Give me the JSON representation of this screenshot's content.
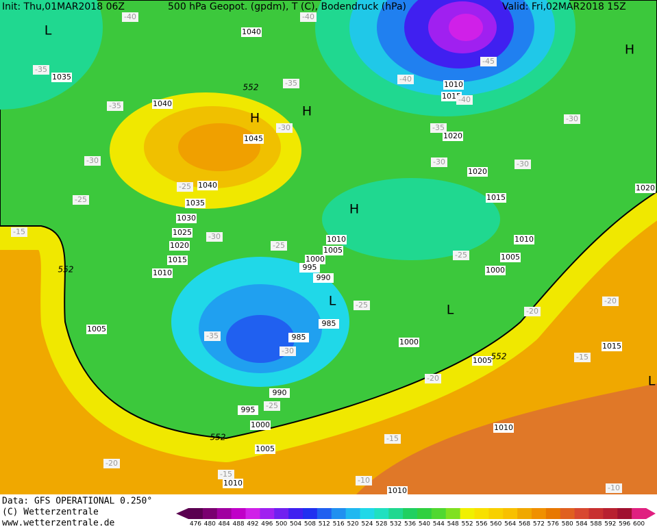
{
  "header": {
    "init": "Init: Thu,01MAR2018 06Z",
    "fields": "500 hPa Geopot. (gpdm), T (C), Bodendruck (hPa)",
    "valid": "Valid: Fri,02MAR2018 15Z"
  },
  "footer": {
    "data": "Data: GFS OPERATIONAL 0.250°",
    "copyright": "(C) Wetterzentrale",
    "url": "www.wetterzentrale.de"
  },
  "map": {
    "pressure_labels": [
      1040,
      1035,
      1040,
      1045,
      1040,
      1035,
      1030,
      1025,
      1020,
      1015,
      1010,
      1005,
      1010,
      1015,
      1020,
      1020,
      1015,
      1010,
      1005,
      1000,
      995,
      990,
      985,
      985,
      1010,
      1005,
      1000,
      1000,
      1005,
      990,
      995,
      1000,
      1005,
      1010,
      1010,
      1015,
      1020,
      1010
    ],
    "temperature_labels": [
      -40,
      -40,
      -35,
      -35,
      -35,
      -30,
      -40,
      -45,
      -40,
      -35,
      -30,
      -30,
      -30,
      -30,
      -25,
      -25,
      -15,
      -30,
      -25,
      -25,
      -25,
      -35,
      -30,
      -20,
      -20,
      -15,
      -20,
      -25,
      -15,
      -20,
      -15,
      -10,
      -10
    ],
    "contour_552_labels": [
      552,
      552,
      552,
      552
    ],
    "centers": [
      "L",
      "H",
      "H",
      "H",
      "H",
      "L",
      "L",
      "L"
    ]
  },
  "legend": {
    "ticks": [
      476,
      480,
      484,
      488,
      492,
      496,
      500,
      504,
      508,
      512,
      516,
      520,
      524,
      528,
      532,
      536,
      540,
      544,
      548,
      552,
      556,
      560,
      564,
      568,
      572,
      576,
      580,
      584,
      588,
      592,
      596,
      600
    ],
    "colors": [
      "#5a0050",
      "#7a0070",
      "#a000a0",
      "#c000c8",
      "#d020e8",
      "#a020f0",
      "#7020f0",
      "#4020f0",
      "#2030f0",
      "#2060f0",
      "#2090f0",
      "#20b8f0",
      "#20d8e8",
      "#20e0c0",
      "#20d890",
      "#20d060",
      "#30d040",
      "#50d830",
      "#80e020",
      "#f0f000",
      "#f8e000",
      "#f8d000",
      "#f8c000",
      "#f0a800",
      "#f09000",
      "#e87800",
      "#e06020",
      "#d84830",
      "#c83030",
      "#b82030",
      "#a01030",
      "#e02080"
    ]
  }
}
